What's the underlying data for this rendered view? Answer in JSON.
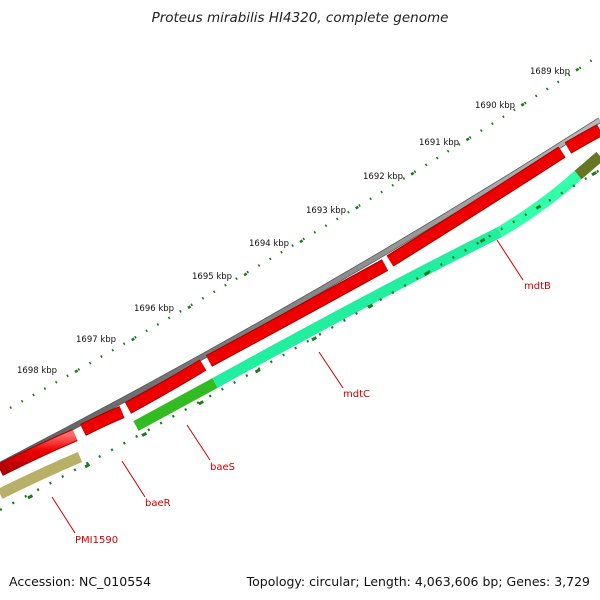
{
  "title": "Proteus mirabilis HI4320, complete genome",
  "accession_text": "Accession: NC_010554",
  "summary_text": "Topology: circular; Length: 4,063,606 bp; Genes: 3,729",
  "ruler": {
    "labels": [
      "1689 kbp",
      "1690 kbp",
      "1691 kbp",
      "1692 kbp",
      "1693 kbp",
      "1694 kbp",
      "1695 kbp",
      "1696 kbp",
      "1697 kbp",
      "1698 kbp"
    ]
  },
  "genes": [
    "mdtB",
    "mdtC",
    "baeS",
    "baeR",
    "PMI1590"
  ],
  "colors": {
    "forward_cds": "#ee0000",
    "backbone": "#888888",
    "ruler_ticks": "#1f7a1f",
    "gene_label": "#cc0000",
    "mdtB_band": "#33ffaa",
    "mdtC_band": "#22eea0",
    "baeS_band": "#33bb22",
    "baeR_band": "#b8b066",
    "PMI1590_band": "#b8b066"
  }
}
